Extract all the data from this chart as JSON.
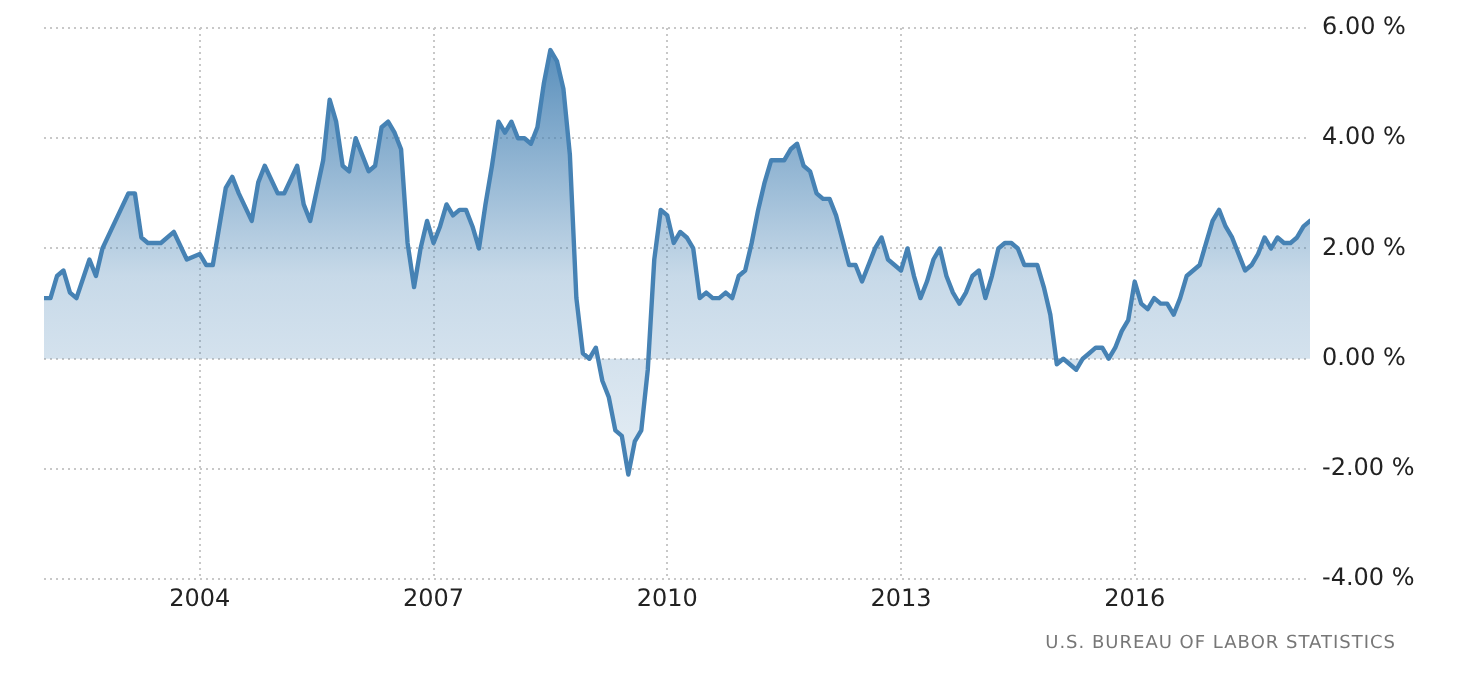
{
  "chart_data": {
    "type": "area",
    "x": [
      "2002-01",
      "2002-02",
      "2002-03",
      "2002-04",
      "2002-05",
      "2002-06",
      "2002-08",
      "2002-09",
      "2002-10",
      "2002-12",
      "2003-02",
      "2003-03",
      "2003-04",
      "2003-05",
      "2003-07",
      "2003-09",
      "2003-11",
      "2004-01",
      "2004-02",
      "2004-03",
      "2004-05",
      "2004-06",
      "2004-07",
      "2004-09",
      "2004-10",
      "2004-11",
      "2005-01",
      "2005-02",
      "2005-04",
      "2005-05",
      "2005-06",
      "2005-08",
      "2005-09",
      "2005-10",
      "2005-11",
      "2005-12",
      "2006-01",
      "2006-03",
      "2006-04",
      "2006-05",
      "2006-06",
      "2006-07",
      "2006-08",
      "2006-09",
      "2006-10",
      "2006-11",
      "2006-12",
      "2007-01",
      "2007-02",
      "2007-03",
      "2007-04",
      "2007-05",
      "2007-06",
      "2007-07",
      "2007-08",
      "2007-09",
      "2007-10",
      "2007-11",
      "2007-12",
      "2008-01",
      "2008-02",
      "2008-03",
      "2008-04",
      "2008-05",
      "2008-06",
      "2008-07",
      "2008-08",
      "2008-09",
      "2008-10",
      "2008-11",
      "2008-12",
      "2009-01",
      "2009-02",
      "2009-03",
      "2009-04",
      "2009-05",
      "2009-06",
      "2009-07",
      "2009-08",
      "2009-09",
      "2009-10",
      "2009-11",
      "2009-12",
      "2010-01",
      "2010-02",
      "2010-03",
      "2010-04",
      "2010-05",
      "2010-06",
      "2010-07",
      "2010-08",
      "2010-09",
      "2010-10",
      "2010-11",
      "2010-12",
      "2011-01",
      "2011-02",
      "2011-03",
      "2011-04",
      "2011-05",
      "2011-07",
      "2011-08",
      "2011-09",
      "2011-10",
      "2011-11",
      "2011-12",
      "2012-01",
      "2012-02",
      "2012-03",
      "2012-05",
      "2012-06",
      "2012-07",
      "2012-08",
      "2012-09",
      "2012-10",
      "2012-11",
      "2012-12",
      "2013-01",
      "2013-02",
      "2013-03",
      "2013-04",
      "2013-05",
      "2013-06",
      "2013-07",
      "2013-08",
      "2013-09",
      "2013-10",
      "2013-11",
      "2013-12",
      "2014-01",
      "2014-02",
      "2014-03",
      "2014-04",
      "2014-05",
      "2014-06",
      "2014-07",
      "2014-08",
      "2014-09",
      "2014-10",
      "2014-11",
      "2014-12",
      "2015-01",
      "2015-02",
      "2015-03",
      "2015-04",
      "2015-05",
      "2015-06",
      "2015-07",
      "2015-08",
      "2015-09",
      "2015-10",
      "2015-11",
      "2015-12",
      "2016-01",
      "2016-02",
      "2016-03",
      "2016-04",
      "2016-05",
      "2016-06",
      "2016-07",
      "2016-08",
      "2016-09",
      "2016-10",
      "2016-11",
      "2016-12",
      "2017-01",
      "2017-02",
      "2017-03",
      "2017-04",
      "2017-05",
      "2017-06",
      "2017-07",
      "2017-08",
      "2017-09",
      "2017-10",
      "2017-11",
      "2017-12",
      "2018-01",
      "2018-02",
      "2018-03",
      "2018-04"
    ],
    "series": [
      {
        "color": "#4682b4",
        "values": [
          1.1,
          1.1,
          1.5,
          1.6,
          1.2,
          1.1,
          1.8,
          1.5,
          2.0,
          2.5,
          3.0,
          3.0,
          2.2,
          2.1,
          2.1,
          2.3,
          1.8,
          1.9,
          1.7,
          1.7,
          3.1,
          3.3,
          3.0,
          2.5,
          3.2,
          3.5,
          3.0,
          3.0,
          3.5,
          2.8,
          2.5,
          3.6,
          4.7,
          4.3,
          3.5,
          3.4,
          4.0,
          3.4,
          3.5,
          4.2,
          4.3,
          4.1,
          3.8,
          2.1,
          1.3,
          2.0,
          2.5,
          2.1,
          2.4,
          2.8,
          2.6,
          2.7,
          2.7,
          2.4,
          2.0,
          2.8,
          3.5,
          4.3,
          4.1,
          4.3,
          4.0,
          4.0,
          3.9,
          4.2,
          5.0,
          5.6,
          5.4,
          4.9,
          3.7,
          1.1,
          0.1,
          0.0,
          0.2,
          -0.4,
          -0.7,
          -1.3,
          -1.4,
          -2.1,
          -1.5,
          -1.3,
          -0.2,
          1.8,
          2.7,
          2.6,
          2.1,
          2.3,
          2.2,
          2.0,
          1.1,
          1.2,
          1.1,
          1.1,
          1.2,
          1.1,
          1.5,
          1.6,
          2.1,
          2.7,
          3.2,
          3.6,
          3.6,
          3.8,
          3.9,
          3.5,
          3.4,
          3.0,
          2.9,
          2.9,
          2.6,
          1.7,
          1.7,
          1.4,
          1.7,
          2.0,
          2.2,
          1.8,
          1.7,
          1.6,
          2.0,
          1.5,
          1.1,
          1.4,
          1.8,
          2.0,
          1.5,
          1.2,
          1.0,
          1.2,
          1.5,
          1.6,
          1.1,
          1.5,
          2.0,
          2.1,
          2.1,
          2.0,
          1.7,
          1.7,
          1.7,
          1.3,
          0.8,
          -0.1,
          0.0,
          -0.1,
          -0.2,
          0.0,
          0.1,
          0.2,
          0.2,
          0.0,
          0.2,
          0.5,
          0.7,
          1.4,
          1.0,
          0.9,
          1.1,
          1.0,
          1.0,
          0.8,
          1.1,
          1.5,
          1.6,
          1.7,
          2.1,
          2.5,
          2.7,
          2.4,
          2.2,
          1.9,
          1.6,
          1.7,
          1.9,
          2.2,
          2.0,
          2.2,
          2.1,
          2.1,
          2.2,
          2.4,
          2.5
        ]
      }
    ],
    "xlim": [
      "2002-01",
      "2018-04"
    ],
    "xticks": [
      "2004",
      "2007",
      "2010",
      "2013",
      "2016"
    ],
    "ylim": [
      -4,
      6
    ],
    "yticks": [
      {
        "value": -4,
        "label": "-4.00 %"
      },
      {
        "value": -2,
        "label": "-2.00 %"
      },
      {
        "value": 0,
        "label": "0.00 %"
      },
      {
        "value": 2,
        "label": "2.00 %"
      },
      {
        "value": 4,
        "label": "4.00 %"
      },
      {
        "value": 6,
        "label": "6.00 %"
      }
    ],
    "grid": true,
    "legend": false,
    "marker": "none",
    "line_style": "solid",
    "annotations": [
      "U.S. BUREAU OF LABOR STATISTICS"
    ]
  }
}
